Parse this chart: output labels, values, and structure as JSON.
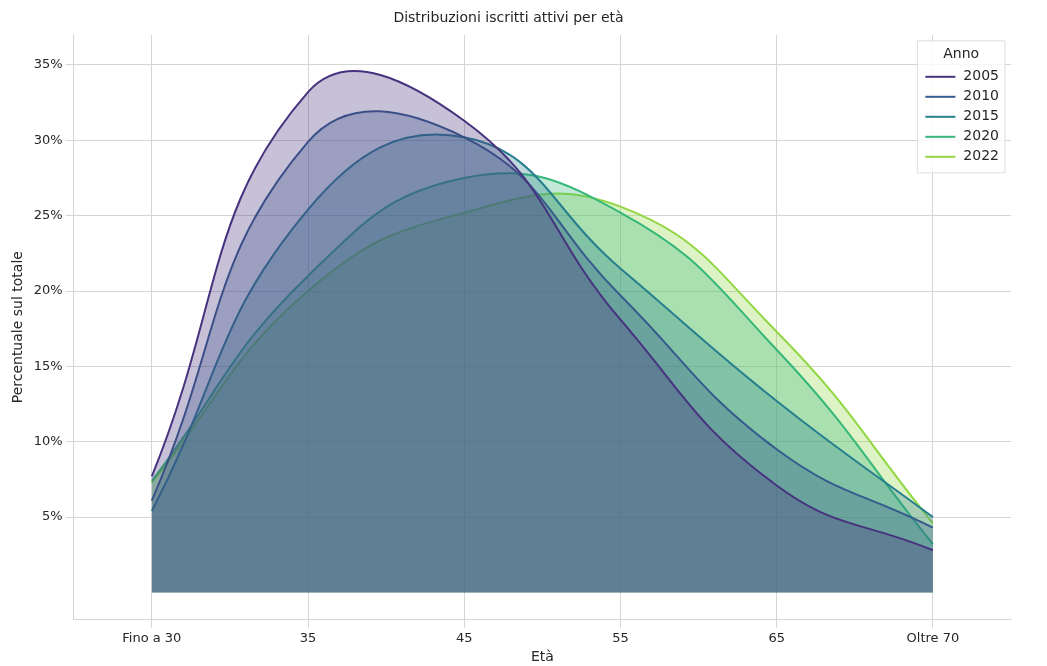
{
  "chart_data": {
    "type": "area",
    "title": "Distribuzioni iscritti attivi per età",
    "xlabel": "Età",
    "ylabel": "Percentuale sul totale",
    "legend_title": "Anno",
    "categories": [
      "Fino a 30",
      "35",
      "45",
      "55",
      "65",
      "Oltre 70"
    ],
    "series": [
      {
        "name": "2005",
        "color": "#46327e",
        "values": [
          7.7,
          33.2,
          31.3,
          18.1,
          7.1,
          2.8
        ]
      },
      {
        "name": "2010",
        "color": "#365c8d",
        "values": [
          6.1,
          29.9,
          30.2,
          19.7,
          9.5,
          4.3
        ]
      },
      {
        "name": "2015",
        "color": "#277f8e",
        "values": [
          5.4,
          25.4,
          30.2,
          21.5,
          12.7,
          5.0
        ]
      },
      {
        "name": "2020",
        "color": "#35b779",
        "values": [
          7.4,
          21.0,
          27.5,
          25.2,
          16.1,
          3.2
        ]
      },
      {
        "name": "2022",
        "color": "#90d743",
        "values": [
          7.3,
          20.0,
          25.2,
          25.6,
          17.3,
          4.6
        ]
      }
    ],
    "ylim": [
      -1.8,
      37
    ],
    "yticks": [
      {
        "value": 5,
        "label": "5%"
      },
      {
        "value": 10,
        "label": "10%"
      },
      {
        "value": 15,
        "label": "15%"
      },
      {
        "value": 20,
        "label": "20%"
      },
      {
        "value": 25,
        "label": "25%"
      },
      {
        "value": 30,
        "label": "30%"
      },
      {
        "value": 35,
        "label": "35%"
      }
    ],
    "grid": true,
    "legend": "top right",
    "marker": "none",
    "line_style": "solid"
  }
}
